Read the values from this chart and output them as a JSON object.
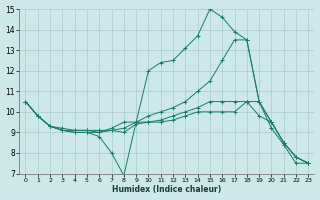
{
  "xlabel": "Humidex (Indice chaleur)",
  "background_color": "#cce8e8",
  "grid_color": "#aacccc",
  "line_color": "#1a7a6a",
  "xlim": [
    -0.5,
    23.5
  ],
  "ylim": [
    7,
    15
  ],
  "xticks": [
    0,
    1,
    2,
    3,
    4,
    5,
    6,
    7,
    8,
    9,
    10,
    11,
    12,
    13,
    14,
    15,
    16,
    17,
    18,
    19,
    20,
    21,
    22,
    23
  ],
  "yticks": [
    7,
    8,
    9,
    10,
    11,
    12,
    13,
    14,
    15
  ],
  "lines": [
    {
      "x": [
        0,
        1,
        2,
        3,
        4,
        5,
        6,
        7,
        8,
        9,
        10,
        11,
        12,
        13,
        14,
        15,
        16,
        17,
        18,
        19,
        20,
        21,
        22,
        23
      ],
      "y": [
        10.5,
        9.8,
        9.3,
        9.1,
        9.0,
        9.0,
        8.8,
        8.0,
        6.9,
        9.5,
        12.0,
        12.4,
        12.5,
        13.1,
        13.7,
        15.0,
        14.6,
        13.9,
        13.5,
        10.5,
        9.2,
        8.4,
        7.5,
        7.5
      ]
    },
    {
      "x": [
        0,
        1,
        2,
        3,
        4,
        5,
        6,
        7,
        8,
        9,
        10,
        11,
        12,
        13,
        14,
        15,
        16,
        17,
        18,
        19,
        20,
        21,
        22,
        23
      ],
      "y": [
        10.5,
        9.8,
        9.3,
        9.1,
        9.0,
        9.0,
        9.0,
        9.2,
        9.5,
        9.5,
        9.8,
        10.0,
        10.2,
        10.5,
        11.0,
        11.5,
        12.5,
        13.5,
        13.5,
        10.5,
        9.5,
        8.5,
        7.8,
        7.5
      ]
    },
    {
      "x": [
        0,
        1,
        2,
        3,
        4,
        5,
        6,
        7,
        8,
        9,
        10,
        11,
        12,
        13,
        14,
        15,
        16,
        17,
        18,
        19,
        20,
        21,
        22,
        23
      ],
      "y": [
        10.5,
        9.8,
        9.3,
        9.1,
        9.1,
        9.1,
        9.0,
        9.1,
        9.2,
        9.5,
        9.5,
        9.6,
        9.8,
        10.0,
        10.2,
        10.5,
        10.5,
        10.5,
        10.5,
        10.5,
        9.5,
        8.5,
        7.8,
        7.5
      ]
    },
    {
      "x": [
        0,
        1,
        2,
        3,
        4,
        5,
        6,
        7,
        8,
        9,
        10,
        11,
        12,
        13,
        14,
        15,
        16,
        17,
        18,
        19,
        20,
        21,
        22,
        23
      ],
      "y": [
        10.5,
        9.8,
        9.3,
        9.2,
        9.1,
        9.1,
        9.1,
        9.1,
        9.0,
        9.4,
        9.5,
        9.5,
        9.6,
        9.8,
        10.0,
        10.0,
        10.0,
        10.0,
        10.5,
        9.8,
        9.5,
        8.5,
        7.8,
        7.5
      ]
    }
  ]
}
